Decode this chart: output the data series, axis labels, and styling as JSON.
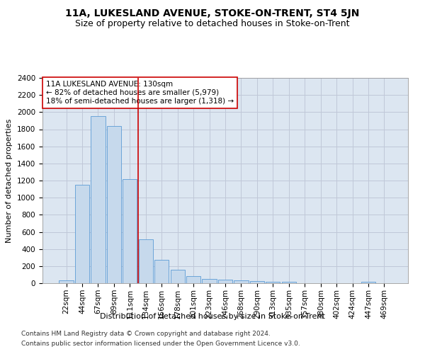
{
  "title": "11A, LUKESLAND AVENUE, STOKE-ON-TRENT, ST4 5JN",
  "subtitle": "Size of property relative to detached houses in Stoke-on-Trent",
  "xlabel": "Distribution of detached houses by size in Stoke-on-Trent",
  "ylabel": "Number of detached properties",
  "categories": [
    "22sqm",
    "44sqm",
    "67sqm",
    "89sqm",
    "111sqm",
    "134sqm",
    "156sqm",
    "178sqm",
    "201sqm",
    "223sqm",
    "246sqm",
    "268sqm",
    "290sqm",
    "313sqm",
    "335sqm",
    "357sqm",
    "380sqm",
    "402sqm",
    "424sqm",
    "447sqm",
    "469sqm"
  ],
  "values": [
    30,
    1150,
    1950,
    1840,
    1220,
    510,
    270,
    155,
    80,
    50,
    45,
    35,
    25,
    20,
    15,
    2,
    2,
    2,
    2,
    20,
    2
  ],
  "bar_color": "#c6d9ec",
  "bar_edge_color": "#5b9bd5",
  "grid_color": "#c0c8d8",
  "bg_color": "#dce6f1",
  "vline_color": "#cc0000",
  "annotation_text": "11A LUKESLAND AVENUE: 130sqm\n← 82% of detached houses are smaller (5,979)\n18% of semi-detached houses are larger (1,318) →",
  "annotation_box_color": "white",
  "annotation_box_edge": "#cc0000",
  "ylim": [
    0,
    2400
  ],
  "yticks": [
    0,
    200,
    400,
    600,
    800,
    1000,
    1200,
    1400,
    1600,
    1800,
    2000,
    2200,
    2400
  ],
  "footer1": "Contains HM Land Registry data © Crown copyright and database right 2024.",
  "footer2": "Contains public sector information licensed under the Open Government Licence v3.0.",
  "title_fontsize": 10,
  "subtitle_fontsize": 9,
  "axis_label_fontsize": 8,
  "tick_fontsize": 7.5,
  "annotation_fontsize": 7.5,
  "footer_fontsize": 6.5,
  "vline_x": 4.5
}
